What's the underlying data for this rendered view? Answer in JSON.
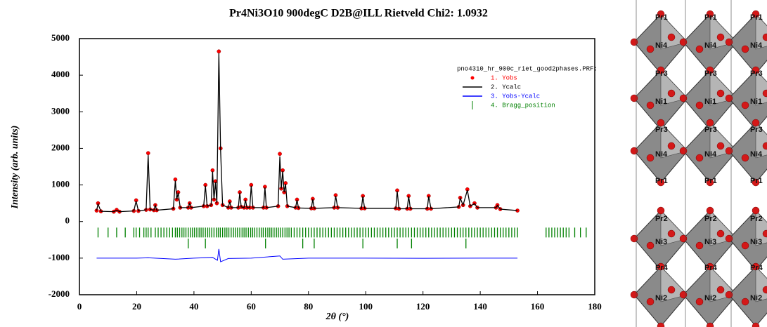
{
  "chart_data": {
    "type": "rietveld",
    "title": "Pr4Ni3O10 900degC D2B@ILL Rietveld   Chi2:  1.0932",
    "x_label": "2θ (°)",
    "y_label": "Intensity (arb. units)",
    "legend_title": "pno4310_hr_900c_riet_good2phases.PRF:",
    "xlim": [
      0,
      180
    ],
    "xticks": [
      0,
      20,
      40,
      60,
      80,
      100,
      120,
      140,
      160,
      180
    ],
    "ylim": [
      -2000,
      5000
    ],
    "yticks": [
      -2000,
      -1000,
      0,
      1000,
      2000,
      3000,
      4000,
      5000
    ],
    "x": [
      6,
      6.5,
      7.5,
      12,
      13,
      14,
      19,
      19.8,
      20.6,
      23.3,
      24,
      24.7,
      26,
      26.5,
      27,
      32.8,
      33.5,
      34,
      34.5,
      35.2,
      38,
      38.5,
      39,
      43.4,
      44,
      44.6,
      46,
      46.5,
      47,
      47.5,
      48,
      48.7,
      49.3,
      50,
      52,
      52.5,
      53,
      55.5,
      56,
      56.5,
      57.5,
      58,
      58.5,
      59.5,
      60,
      60.6,
      64.3,
      64.8,
      65.3,
      69.4,
      70,
      70.5,
      71,
      71.5,
      72,
      72.6,
      75.5,
      76,
      76.5,
      81,
      81.5,
      82,
      89,
      89.5,
      90.2,
      98.5,
      99,
      99.6,
      110.5,
      111,
      111.6,
      114.5,
      115,
      115.6,
      121.5,
      122,
      122.8,
      132.5,
      133,
      134,
      135.5,
      136.5,
      138,
      139,
      145.5,
      146,
      147,
      153
    ],
    "series": [
      {
        "name": "1. Yobs",
        "color": "#ff0000",
        "values": [
          300,
          500,
          280,
          270,
          320,
          270,
          290,
          580,
          290,
          320,
          1870,
          330,
          310,
          450,
          310,
          350,
          1150,
          600,
          800,
          380,
          380,
          500,
          380,
          420,
          1000,
          420,
          450,
          1400,
          600,
          1100,
          500,
          4650,
          2000,
          450,
          380,
          550,
          380,
          380,
          800,
          400,
          380,
          600,
          380,
          380,
          1000,
          380,
          380,
          950,
          380,
          420,
          1850,
          900,
          1400,
          800,
          1050,
          420,
          380,
          600,
          370,
          360,
          620,
          360,
          380,
          720,
          380,
          360,
          700,
          360,
          360,
          850,
          350,
          350,
          700,
          350,
          350,
          700,
          350,
          400,
          650,
          450,
          880,
          420,
          500,
          380,
          380,
          450,
          340,
          300
        ]
      },
      {
        "name": "2. Ycalc",
        "color": "#000000",
        "values": [
          300,
          480,
          280,
          270,
          310,
          270,
          290,
          560,
          290,
          320,
          1820,
          330,
          310,
          440,
          310,
          350,
          1120,
          600,
          790,
          380,
          380,
          490,
          380,
          420,
          980,
          420,
          450,
          1370,
          600,
          1080,
          500,
          4600,
          1960,
          450,
          380,
          540,
          380,
          380,
          790,
          400,
          380,
          590,
          380,
          380,
          980,
          380,
          380,
          930,
          380,
          420,
          1780,
          900,
          1380,
          800,
          1030,
          420,
          380,
          590,
          370,
          360,
          610,
          360,
          380,
          700,
          380,
          360,
          690,
          360,
          360,
          830,
          350,
          350,
          690,
          350,
          350,
          690,
          350,
          400,
          640,
          450,
          860,
          420,
          490,
          380,
          380,
          440,
          340,
          300
        ]
      }
    ],
    "diff": {
      "name": "3. Yobs-Ycalc",
      "color": "#0000ff",
      "x": [
        6,
        20,
        24,
        33.5,
        40,
        46.5,
        48.2,
        48.7,
        49.3,
        52,
        60,
        70,
        71,
        80,
        100,
        120,
        140,
        153
      ],
      "values": [
        -1000,
        -1000,
        -990,
        -1030,
        -1000,
        -980,
        -1060,
        -750,
        -1100,
        -1010,
        -1000,
        -940,
        -1030,
        -1000,
        -1000,
        -1005,
        -1000,
        -1000
      ]
    },
    "bragg": {
      "name": "4. Bragg_position",
      "color": "#008000",
      "phases": [
        [
          6.5,
          10,
          13,
          16,
          19,
          19.8,
          21,
          22.5,
          23.3,
          24,
          25,
          26.5,
          27.5,
          28.5,
          29.5,
          30.5,
          31.5,
          32.5,
          33.5,
          34.2,
          35,
          35.8,
          36.5,
          37.2,
          38,
          38.8,
          39.5,
          40.2,
          41,
          41.8,
          42.5,
          43.2,
          44,
          44.8,
          45.5,
          46.2,
          47,
          47.8,
          48.5,
          49.2,
          50,
          50.8,
          51.5,
          52.2,
          53,
          53.8,
          54.5,
          55.2,
          56,
          56.8,
          57.5,
          58.2,
          59,
          59.8,
          60.5,
          61.2,
          62,
          62.8,
          63.5,
          64.2,
          65,
          65.8,
          66.5,
          67.2,
          68,
          68.8,
          69.5,
          70.2,
          71,
          71.8,
          72.5,
          73.2,
          74,
          75,
          76,
          77,
          78,
          79,
          80,
          81,
          82,
          83,
          84,
          85,
          86,
          87,
          88,
          89,
          90,
          91,
          92,
          93,
          94,
          95,
          96,
          97,
          98,
          99,
          100,
          101,
          102,
          103,
          104,
          105,
          106,
          107,
          108,
          109,
          110,
          111,
          112,
          113,
          114,
          115,
          116,
          117,
          118,
          119,
          120,
          121,
          122,
          123,
          124,
          125,
          126,
          127,
          128,
          129,
          130,
          131,
          132,
          133,
          134,
          135,
          136,
          137,
          138,
          139,
          140,
          141,
          142,
          143,
          144,
          145,
          146,
          147,
          148,
          149,
          150,
          151,
          152,
          153,
          163,
          164,
          165,
          166,
          167,
          168,
          169,
          170,
          171,
          173,
          175,
          177
        ],
        [
          38,
          44,
          65,
          78,
          82,
          99,
          111,
          116,
          135
        ]
      ]
    }
  },
  "structure": {
    "labels": [
      "Pr1",
      "Ni4",
      "Pr3",
      "Ni1",
      "Pr3",
      "Ni4",
      "Pr1",
      "Pr2",
      "Ni3",
      "Pr4",
      "Ni2"
    ]
  }
}
